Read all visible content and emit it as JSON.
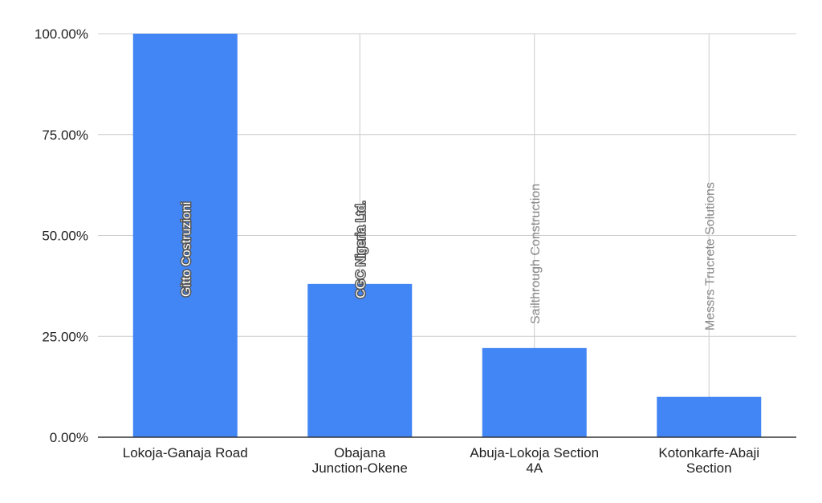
{
  "chart_data": {
    "type": "bar",
    "categories": [
      [
        "Lokoja-Ganaja Road"
      ],
      [
        "Obajana",
        "Junction-Okene"
      ],
      [
        "Abuja-Lokoja Section",
        "4A"
      ],
      [
        "Kotonkarfe-Abaji",
        "Section"
      ]
    ],
    "values": [
      100.0,
      38.0,
      22.1,
      10.0
    ],
    "bar_labels": [
      "Gitto Costruzioni",
      "CGC Nigeria Ltd.",
      "Sailthrough Construction",
      "Messrs Trucrete Solutions"
    ],
    "y_ticks": [
      "0.00%",
      "25.00%",
      "50.00%",
      "75.00%",
      "100.00%"
    ],
    "ylim": [
      0,
      100
    ],
    "grid": true,
    "legend": "none",
    "title": "",
    "xlabel": "",
    "ylabel": "",
    "colors": {
      "bar": "#4285f4",
      "grid": "#cccccc",
      "axis": "#333333",
      "label_on_bar": "#ffffff",
      "label_outside": "#888888",
      "text": "#222222"
    }
  }
}
